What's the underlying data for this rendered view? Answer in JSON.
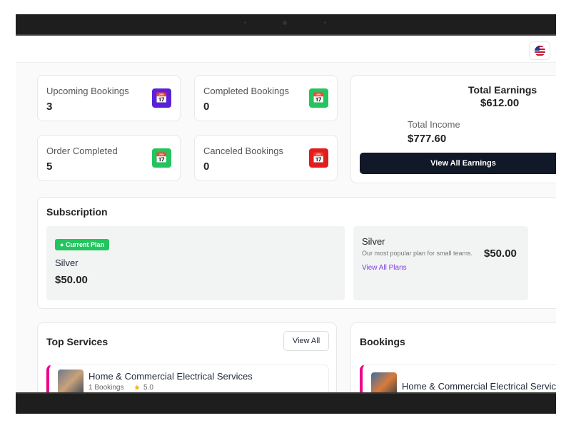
{
  "header": {
    "language_icon": "us-flag-icon"
  },
  "stats": [
    {
      "label": "Upcoming Bookings",
      "value": "3",
      "color": "#5b21d6",
      "icon": "calendar-check-icon"
    },
    {
      "label": "Completed Bookings",
      "value": "0",
      "color": "#22c55e",
      "icon": "calendar-check-icon"
    },
    {
      "label": "Order Completed",
      "value": "5",
      "color": "#22c55e",
      "icon": "calendar-check-icon"
    },
    {
      "label": "Canceled Bookings",
      "value": "0",
      "color": "#e11d1d",
      "icon": "calendar-x-icon"
    }
  ],
  "earnings": {
    "title": "Total Earnings",
    "total": "$612.00",
    "income_label": "Total Income",
    "income": "$777.60",
    "button": "View All Earnings"
  },
  "subscription": {
    "title": "Subscription",
    "badge": "Current Plan",
    "current_name": "Silver",
    "current_price": "$50.00",
    "other": {
      "name": "Silver",
      "desc": "Our most popular plan for small teams.",
      "price": "$50.00",
      "link": "View All Plans"
    }
  },
  "top_services": {
    "title": "Top Services",
    "button": "View All",
    "items": [
      {
        "name": "Home & Commercial Electrical Services",
        "bookings": "1 Bookings",
        "rating": "5.0"
      }
    ]
  },
  "bookings": {
    "title": "Bookings",
    "items": [
      {
        "name": "Home & Commercial Electrical Services"
      }
    ]
  }
}
